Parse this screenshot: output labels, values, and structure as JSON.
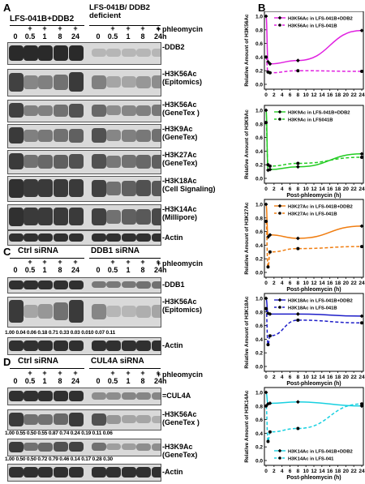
{
  "panels": {
    "A": "A",
    "B": "B",
    "C": "C",
    "D": "D"
  },
  "panelA": {
    "group1": "LFS-041B+DDB2",
    "group2": "LFS-041B/ DDB2 deficient",
    "treatment": "phleomycin",
    "time_unit": "h",
    "timepoints": [
      "0",
      "0.5",
      "1",
      "8",
      "24",
      "0",
      "0.5",
      "1",
      "8",
      "24"
    ],
    "plus_signs": [
      "",
      "+",
      "+",
      "+",
      "+",
      "",
      "+",
      "+",
      "+",
      "+"
    ],
    "blots": [
      {
        "label": "-DDB2",
        "g1": [
          0.95,
          0.95,
          0.95,
          0.95,
          0.95
        ],
        "g2": [
          0.05,
          0.05,
          0.05,
          0.05,
          0.05
        ]
      },
      {
        "label": "-H3K56Ac (Epitomics)",
        "g1": [
          0.8,
          0.35,
          0.4,
          0.5,
          0.85
        ],
        "g2": [
          0.4,
          0.15,
          0.15,
          0.25,
          0.3
        ]
      },
      {
        "label": "-H3K56Ac (GeneTex )",
        "g1": [
          0.8,
          0.4,
          0.4,
          0.5,
          0.7
        ],
        "g2": [
          0.55,
          0.3,
          0.35,
          0.4,
          0.45
        ]
      },
      {
        "label": "-H3K9Ac (GeneTex)",
        "g1": [
          0.85,
          0.4,
          0.45,
          0.5,
          0.6
        ],
        "g2": [
          0.7,
          0.35,
          0.4,
          0.45,
          0.5
        ]
      },
      {
        "label": "-H3K27Ac (GeneTex)",
        "g1": [
          0.85,
          0.5,
          0.55,
          0.6,
          0.7
        ],
        "g2": [
          0.7,
          0.45,
          0.5,
          0.55,
          0.6
        ]
      },
      {
        "label": "-H3K18Ac (Cell Signaling)",
        "g1": [
          0.9,
          0.85,
          0.85,
          0.85,
          0.85
        ],
        "g2": [
          0.8,
          0.5,
          0.6,
          0.7,
          0.65
        ]
      },
      {
        "label": "-H3K14Ac (Millipore)",
        "g1": [
          0.9,
          0.85,
          0.85,
          0.85,
          0.85
        ],
        "g2": [
          0.8,
          0.5,
          0.6,
          0.65,
          0.75
        ]
      },
      {
        "label": "-Actin",
        "g1": [
          0.9,
          0.9,
          0.9,
          0.9,
          0.9
        ],
        "g2": [
          0.9,
          0.9,
          0.9,
          0.9,
          0.9
        ]
      }
    ]
  },
  "panelC": {
    "group1": "Ctrl siRNA",
    "group2": "DDB1 siRNA",
    "treatment": "phleomycin",
    "time_unit": "h",
    "timepoints": [
      "0",
      "0.5",
      "1",
      "8",
      "24",
      "0",
      "0.5",
      "1",
      "8",
      "24"
    ],
    "plus_signs": [
      "",
      "+",
      "+",
      "+",
      "+",
      "",
      "+",
      "+",
      "+",
      "+"
    ],
    "blots": [
      {
        "label": "-DDB1",
        "g1": [
          0.9,
          0.9,
          0.9,
          0.9,
          0.9
        ],
        "g2": [
          0.45,
          0.45,
          0.45,
          0.5,
          0.5
        ]
      },
      {
        "label": "-H3K56Ac (Epitomics)",
        "g1": [
          0.85,
          0.15,
          0.25,
          0.5,
          0.85
        ],
        "g2": [
          0.35,
          0.05,
          0.05,
          0.1,
          0.15
        ]
      },
      {
        "label": "-Actin",
        "g1": [
          0.9,
          0.9,
          0.9,
          0.9,
          0.9
        ],
        "g2": [
          0.9,
          0.9,
          0.9,
          0.9,
          0.9
        ]
      }
    ],
    "quant": "1.00 0.04 0.06 0.18 0.71 0.33 0.03 0.010 0.07 0.11"
  },
  "panelD": {
    "group1": "Ctrl siRNA",
    "group2": "CUL4A siRNA",
    "treatment": "phleomycin",
    "time_unit": "h",
    "timepoints": [
      "0",
      "0.5",
      "1",
      "8",
      "24",
      "0",
      "0.5",
      "1",
      "8",
      "24"
    ],
    "plus_signs": [
      "",
      "+",
      "+",
      "+",
      "+",
      "",
      "+",
      "+",
      "+",
      "+"
    ],
    "blots": [
      {
        "label": "=CUL4A",
        "g1": [
          0.9,
          0.9,
          0.9,
          0.9,
          0.9
        ],
        "g2": [
          0.3,
          0.3,
          0.35,
          0.35,
          0.35
        ]
      },
      {
        "label": "-H3K56Ac (GeneTex )",
        "g1": [
          0.85,
          0.5,
          0.5,
          0.55,
          0.85
        ],
        "g2": [
          0.7,
          0.25,
          0.15,
          0.15,
          0.1
        ]
      },
      {
        "label": "-H3K9Ac (GeneTex)",
        "g1": [
          0.85,
          0.5,
          0.55,
          0.7,
          0.8
        ],
        "g2": [
          0.5,
          0.2,
          0.2,
          0.3,
          0.3
        ]
      },
      {
        "label": "-Actin",
        "g1": [
          0.9,
          0.9,
          0.9,
          0.9,
          0.9
        ],
        "g2": [
          0.9,
          0.9,
          0.9,
          0.9,
          0.9
        ]
      }
    ],
    "quant1": "1.00 0.55 0.50 0.55 0.87 0.74 0.24 0.19 0.11 0.06",
    "quant2": "1.00 0.50 0.50 0.72 0.79 0.46 0.14 0.17 0.28 0.30"
  },
  "chart_data": [
    {
      "type": "line",
      "ylabel": "Relative Amount of H3K56Ac",
      "xlabel": "",
      "xlim": [
        0,
        24
      ],
      "ylim": [
        0,
        1.0
      ],
      "xticks": [
        0,
        2,
        4,
        6,
        8,
        10,
        12,
        14,
        16,
        18,
        20,
        22,
        24
      ],
      "yticks": [
        0,
        0.2,
        0.4,
        0.6,
        0.8,
        1.0
      ],
      "color": "#e020e0",
      "legend": "top-right",
      "series": [
        {
          "name": "H3K56Ac in LFS-041B+DDB2",
          "dashed": false,
          "x": [
            0,
            0.5,
            1,
            8,
            24
          ],
          "y": [
            1.0,
            0.33,
            0.3,
            0.35,
            0.79
          ]
        },
        {
          "name": "H3K56Ac in LFS-041B",
          "dashed": true,
          "x": [
            0,
            0.5,
            1,
            8,
            24
          ],
          "y": [
            0.4,
            0.18,
            0.17,
            0.2,
            0.19
          ]
        }
      ]
    },
    {
      "type": "line",
      "ylabel": "Relative Amount of H3K9Ac",
      "xlabel": "Post-phleomycin (h)",
      "xlim": [
        0,
        24
      ],
      "ylim": [
        0,
        1.0
      ],
      "xticks": [
        0,
        2,
        4,
        6,
        8,
        10,
        12,
        14,
        16,
        18,
        20,
        22,
        24
      ],
      "yticks": [
        0,
        0.2,
        0.4,
        0.6,
        0.8,
        1.0
      ],
      "color": "#22cc22",
      "legend": "top-right",
      "series": [
        {
          "name": "H3K9Ac in LFS-041B+DDB2",
          "dashed": false,
          "x": [
            0,
            0.5,
            1,
            8,
            24
          ],
          "y": [
            1.0,
            0.12,
            0.13,
            0.17,
            0.36
          ]
        },
        {
          "name": "H3K9Ac in LFS041B",
          "dashed": true,
          "x": [
            0,
            0.5,
            1,
            8,
            24
          ],
          "y": [
            0.82,
            0.2,
            0.18,
            0.22,
            0.31
          ]
        }
      ]
    },
    {
      "type": "line",
      "ylabel": "Relative Amount of H3K27Ac",
      "xlabel": "Post-phleomycin (h)",
      "xlim": [
        0,
        24
      ],
      "ylim": [
        0,
        1.0
      ],
      "xticks": [
        0,
        2,
        4,
        6,
        8,
        10,
        12,
        14,
        16,
        18,
        20,
        22,
        24
      ],
      "yticks": [
        0,
        0.2,
        0.4,
        0.6,
        0.8,
        1.0
      ],
      "color": "#f07d10",
      "legend": "top-right",
      "series": [
        {
          "name": "H3K27Ac in LFS-041B+DDB2",
          "dashed": false,
          "x": [
            0,
            0.5,
            1,
            8,
            24
          ],
          "y": [
            1.0,
            0.52,
            0.55,
            0.5,
            0.68
          ]
        },
        {
          "name": "H3K27Ac in LFS-041B",
          "dashed": true,
          "x": [
            0,
            0.5,
            1,
            8,
            24
          ],
          "y": [
            0.75,
            0.08,
            0.3,
            0.35,
            0.38
          ]
        }
      ]
    },
    {
      "type": "line",
      "ylabel": "Relative Amount of H3K18Ac",
      "xlabel": "Post-phleomycin (h)",
      "xlim": [
        0,
        24
      ],
      "ylim": [
        0,
        1.0
      ],
      "xticks": [
        0,
        2,
        4,
        6,
        8,
        10,
        12,
        14,
        16,
        18,
        20,
        22,
        24
      ],
      "yticks": [
        0,
        0.2,
        0.4,
        0.6,
        0.8,
        1.0
      ],
      "color": "#1d1dc8",
      "legend": "top-right",
      "series": [
        {
          "name": "H3K18Ac in LFS-041B+DDB2",
          "dashed": false,
          "x": [
            0,
            0.5,
            1,
            8,
            24
          ],
          "y": [
            1.0,
            0.78,
            0.77,
            0.77,
            0.74
          ]
        },
        {
          "name": "H3K18Ac in LFS-041B",
          "dashed": true,
          "x": [
            0,
            0.5,
            1,
            8,
            24
          ],
          "y": [
            0.85,
            0.32,
            0.45,
            0.68,
            0.64
          ]
        }
      ]
    },
    {
      "type": "line",
      "ylabel": "Relative Amount of H3K14Ac",
      "xlabel": "Post-phleomycin (h)",
      "xlim": [
        0,
        24
      ],
      "ylim": [
        0,
        1.0
      ],
      "xticks": [
        0,
        2,
        4,
        6,
        8,
        10,
        12,
        14,
        16,
        18,
        20,
        22,
        24
      ],
      "yticks": [
        0,
        0.2,
        0.4,
        0.6,
        0.8,
        1.0
      ],
      "color": "#18d0e0",
      "legend": "bottom-right",
      "series": [
        {
          "name": "H3K14Ac in LFS-041B+DDB2",
          "dashed": false,
          "x": [
            0,
            0.5,
            1,
            8,
            24
          ],
          "y": [
            1.0,
            0.83,
            0.84,
            0.86,
            0.8
          ]
        },
        {
          "name": "H3K14Ac in LFS-041",
          "dashed": true,
          "x": [
            0,
            0.5,
            1,
            8,
            24
          ],
          "y": [
            0.8,
            0.28,
            0.42,
            0.47,
            0.83
          ]
        }
      ]
    }
  ]
}
